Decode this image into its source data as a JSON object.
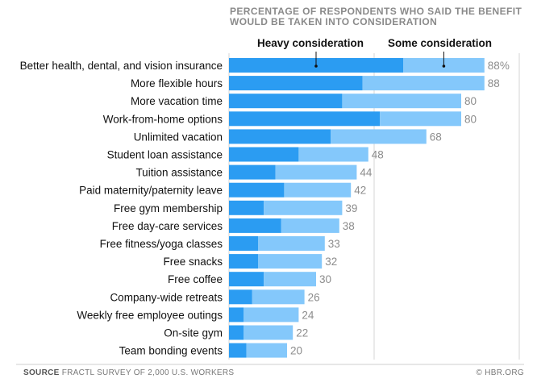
{
  "chart_data": {
    "type": "bar",
    "orientation": "horizontal",
    "stacked": true,
    "subtitle": "PERCENTAGE OF RESPONDENTS WHO SAID THE BENEFIT WOULD BE TAKEN INTO CONSIDERATION",
    "categories": [
      "Better health, dental, and vision insurance",
      "More flexible hours",
      "More vacation time",
      "Work-from-home options",
      "Unlimited vacation",
      "Student loan assistance",
      "Tuition assistance",
      "Paid maternity/paternity leave",
      "Free gym membership",
      "Free day-care services",
      "Free fitness/yoga classes",
      "Free snacks",
      "Free coffee",
      "Company-wide retreats",
      "Weekly free employee outings",
      "On-site gym",
      "Team bonding events"
    ],
    "series": [
      {
        "name": "Heavy consideration",
        "values": [
          60,
          46,
          39,
          52,
          35,
          24,
          16,
          19,
          12,
          18,
          10,
          10,
          12,
          8,
          5,
          5,
          6
        ]
      },
      {
        "name": "Some consideration",
        "values": [
          28,
          42,
          41,
          28,
          33,
          24,
          28,
          23,
          27,
          20,
          23,
          22,
          18,
          18,
          19,
          17,
          14
        ]
      }
    ],
    "totals": [
      88,
      88,
      80,
      80,
      68,
      48,
      44,
      42,
      39,
      38,
      33,
      32,
      30,
      26,
      24,
      22,
      20
    ],
    "total_labels": [
      "88%",
      "88",
      "80",
      "80",
      "68",
      "48",
      "44",
      "42",
      "39",
      "38",
      "33",
      "32",
      "30",
      "26",
      "24",
      "22",
      "20"
    ],
    "xlim": [
      0,
      100
    ],
    "grid": true,
    "legend_placement": "top, inline annotations",
    "colors": {
      "heavy": "#2b9cf2",
      "some": "#84c8fb",
      "value_label": "#8c8c8c",
      "grid": "#d6d6d6"
    }
  },
  "legend": {
    "heavy_label": "Heavy consideration",
    "some_label": "Some consideration"
  },
  "footer": {
    "source_label": "SOURCE",
    "source_text": "FRACTL SURVEY OF 2,000 U.S. WORKERS",
    "credit": "© HBR.ORG"
  }
}
